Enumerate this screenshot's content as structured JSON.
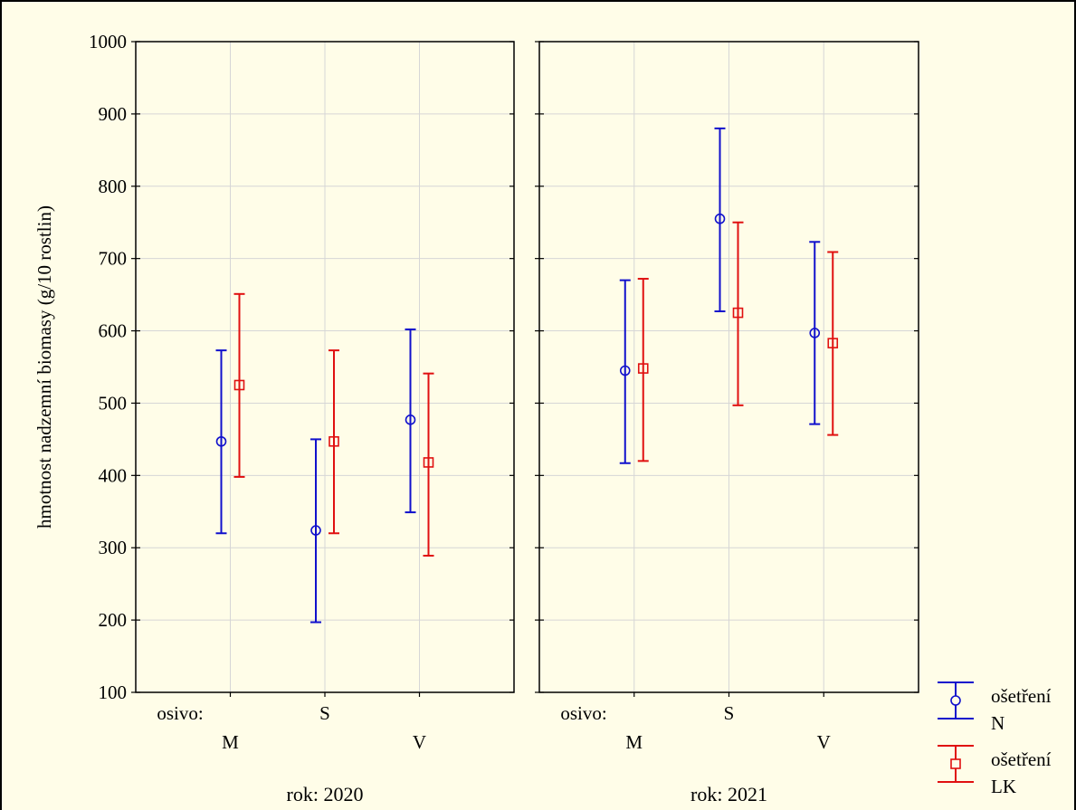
{
  "chart_data": {
    "type": "errorbar",
    "ylabel": "hmotnost nadzemní biomasy (g/10 rostlin)",
    "ylim": [
      100,
      1000
    ],
    "yticks": [
      100,
      200,
      300,
      400,
      500,
      600,
      700,
      800,
      900,
      1000
    ],
    "grid": true,
    "factor_label": "osivo:",
    "categories": [
      "M",
      "S",
      "V"
    ],
    "legend_position": "bottom-right",
    "panels": [
      {
        "label": "rok: 2020",
        "series": [
          {
            "name": "ošetření N",
            "color": "#1010cc",
            "marker": "circle",
            "values": [
              447,
              324,
              477
            ],
            "lower": [
              320,
              197,
              349
            ],
            "upper": [
              573,
              450,
              602
            ]
          },
          {
            "name": "ošetření LK",
            "color": "#e01010",
            "marker": "square",
            "values": [
              525,
              447,
              418
            ],
            "lower": [
              398,
              320,
              289
            ],
            "upper": [
              651,
              573,
              541
            ]
          }
        ]
      },
      {
        "label": "rok: 2021",
        "series": [
          {
            "name": "ošetření N",
            "color": "#1010cc",
            "marker": "circle",
            "values": [
              545,
              755,
              597
            ],
            "lower": [
              417,
              627,
              471
            ],
            "upper": [
              670,
              880,
              723
            ]
          },
          {
            "name": "ošetření LK",
            "color": "#e01010",
            "marker": "square",
            "values": [
              548,
              625,
              583
            ],
            "lower": [
              420,
              497,
              456
            ],
            "upper": [
              672,
              750,
              709
            ]
          }
        ]
      }
    ],
    "legend": [
      {
        "line1": "ošetření",
        "line2": "N",
        "color": "#1010cc",
        "marker": "circle"
      },
      {
        "line1": "ošetření",
        "line2": "LK",
        "color": "#e01010",
        "marker": "square"
      }
    ]
  }
}
